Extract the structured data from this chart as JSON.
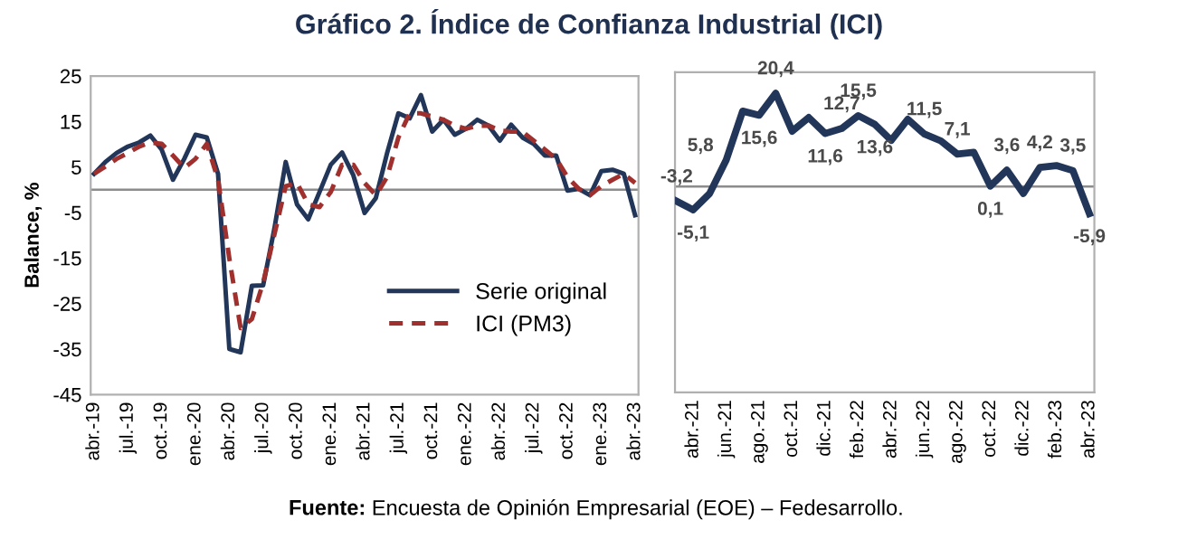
{
  "chart_data": [
    {
      "type": "line",
      "title": "Gráfico 2. Índice de Confianza Industrial (ICI)",
      "ylabel": "Balance, %",
      "categories": [
        "abr.-19",
        null,
        null,
        "jul.-19",
        null,
        null,
        "oct.-19",
        null,
        null,
        "ene.-20",
        null,
        null,
        "abr.-20",
        null,
        null,
        "jul.-20",
        null,
        null,
        "oct.-20",
        null,
        null,
        "ene.-21",
        null,
        null,
        "abr.-21",
        null,
        null,
        "jul.-21",
        null,
        null,
        "oct.-21",
        null,
        null,
        "ene.-22",
        null,
        null,
        "abr.-22",
        null,
        null,
        "jul.-22",
        null,
        null,
        "oct.-22",
        null,
        null,
        "ene.-23",
        null,
        null,
        "abr.-23"
      ],
      "series": [
        {
          "name": "Serie original",
          "color": "#22365a",
          "line_style": "solid",
          "values": [
            3.5,
            6.1,
            8.1,
            9.5,
            10.4,
            11.9,
            8.8,
            2.2,
            6.8,
            12.1,
            11.5,
            3.5,
            -35,
            -35.7,
            -21.1,
            -21,
            -8.5,
            6.1,
            -3.2,
            -6.5,
            -0.5,
            5.5,
            8.2,
            3.2,
            -5.1,
            -1.8,
            8.1,
            16.8,
            15.7,
            20.8,
            12.8,
            15.4,
            12.1,
            13.4,
            15.4,
            14.1,
            10.8,
            14.3,
            11.5,
            10.1,
            7.5,
            7.5,
            -0.2,
            0.2,
            -1.2,
            4.1,
            4.4,
            3.5,
            -5.6
          ]
        },
        {
          "name": "ICI (PM3)",
          "color": "#a0302e",
          "line_style": "dashed",
          "values": [
            3.5,
            5.1,
            6.8,
            8.1,
            9.5,
            10.4,
            10.1,
            7.5,
            4.8,
            6.8,
            10.1,
            2.2,
            -15.1,
            -30.4,
            -28.4,
            -20.4,
            -9.8,
            0.8,
            1.5,
            -3.2,
            -3.8,
            -0.5,
            5.5,
            5.5,
            1.5,
            -1.2,
            2.8,
            11.5,
            16.8,
            16.8,
            16.1,
            15.4,
            14.1,
            13.4,
            14.1,
            14.1,
            13.0,
            12.8,
            12.8,
            10.8,
            8.8,
            6.8,
            2.8,
            0.2,
            -1.2,
            0.8,
            2.2,
            3.5,
            1.5
          ]
        }
      ],
      "ylim": [
        -45,
        25
      ],
      "yticks": [
        -45,
        -35,
        -25,
        -15,
        -5,
        5,
        15,
        25
      ],
      "ref_lines": [
        {
          "axis": "y",
          "value": 0,
          "color": "#8c8c8c"
        }
      ],
      "legend": "bottom right",
      "grid": false,
      "annotations": [
        "Fuente: Encuesta de Opinión Empresarial (EOE) – Fedesarrollo."
      ]
    },
    {
      "type": "line",
      "categories": [
        null,
        "abr.-21",
        null,
        "jun.-21",
        null,
        "ago.-21",
        null,
        "oct.-21",
        null,
        "dic.-21",
        null,
        "feb.-22",
        null,
        "abr.-22",
        null,
        "jun.-22",
        null,
        "ago.-22",
        null,
        "oct.-22",
        null,
        "dic.-22",
        null,
        "feb.-23",
        null,
        "abr.-23"
      ],
      "series": [
        {
          "color": "#22365a",
          "values": [
            -3.2,
            -5.1,
            -1.5,
            5.8,
            16.5,
            15.6,
            20.4,
            12.1,
            15.1,
            11.6,
            12.7,
            15.5,
            13.6,
            10.1,
            14.7,
            11.5,
            10.0,
            7.1,
            7.5,
            0.1,
            3.6,
            -1.5,
            4.2,
            4.6,
            3.5,
            -5.9
          ],
          "value_labels": [
            "-3,2",
            "-5,1",
            null,
            "5,8",
            null,
            "15,6",
            "20,4",
            null,
            null,
            "11,6",
            "12,7",
            "15,5",
            "13,6",
            null,
            null,
            "11,5",
            null,
            "7,1",
            null,
            "0,1",
            "3,6",
            null,
            "4,2",
            null,
            "3,5",
            "-5,9"
          ]
        }
      ],
      "ylim": [
        -45,
        25
      ],
      "tick_labels": "x",
      "ref_lines": [
        {
          "axis": "y",
          "value": 0,
          "color": "#8c8c8c"
        }
      ]
    }
  ]
}
